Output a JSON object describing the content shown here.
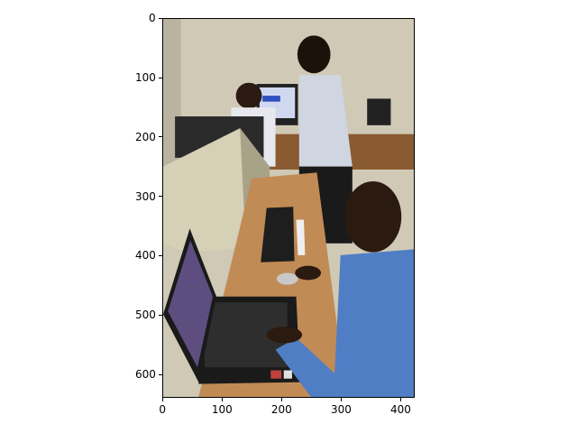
{
  "image": {
    "description_tag": "photo",
    "width": 424,
    "height": 640
  },
  "axes": {
    "x_ticks": [
      0,
      100,
      200,
      300,
      400
    ],
    "y_ticks": [
      0,
      100,
      200,
      300,
      400,
      500,
      600
    ],
    "x_labels": [
      "0",
      "100",
      "200",
      "300",
      "400"
    ],
    "y_labels": [
      "0",
      "100",
      "200",
      "300",
      "400",
      "500",
      "600"
    ]
  },
  "colors": {
    "wall": "#d8d4c4",
    "desk": "#c08850",
    "shirt_blue": "#4a78c0",
    "skin": "#3a2418",
    "monitor": "#d4ceb4",
    "laptop": "#1a1a1a",
    "screen": "#5a4a7a"
  }
}
